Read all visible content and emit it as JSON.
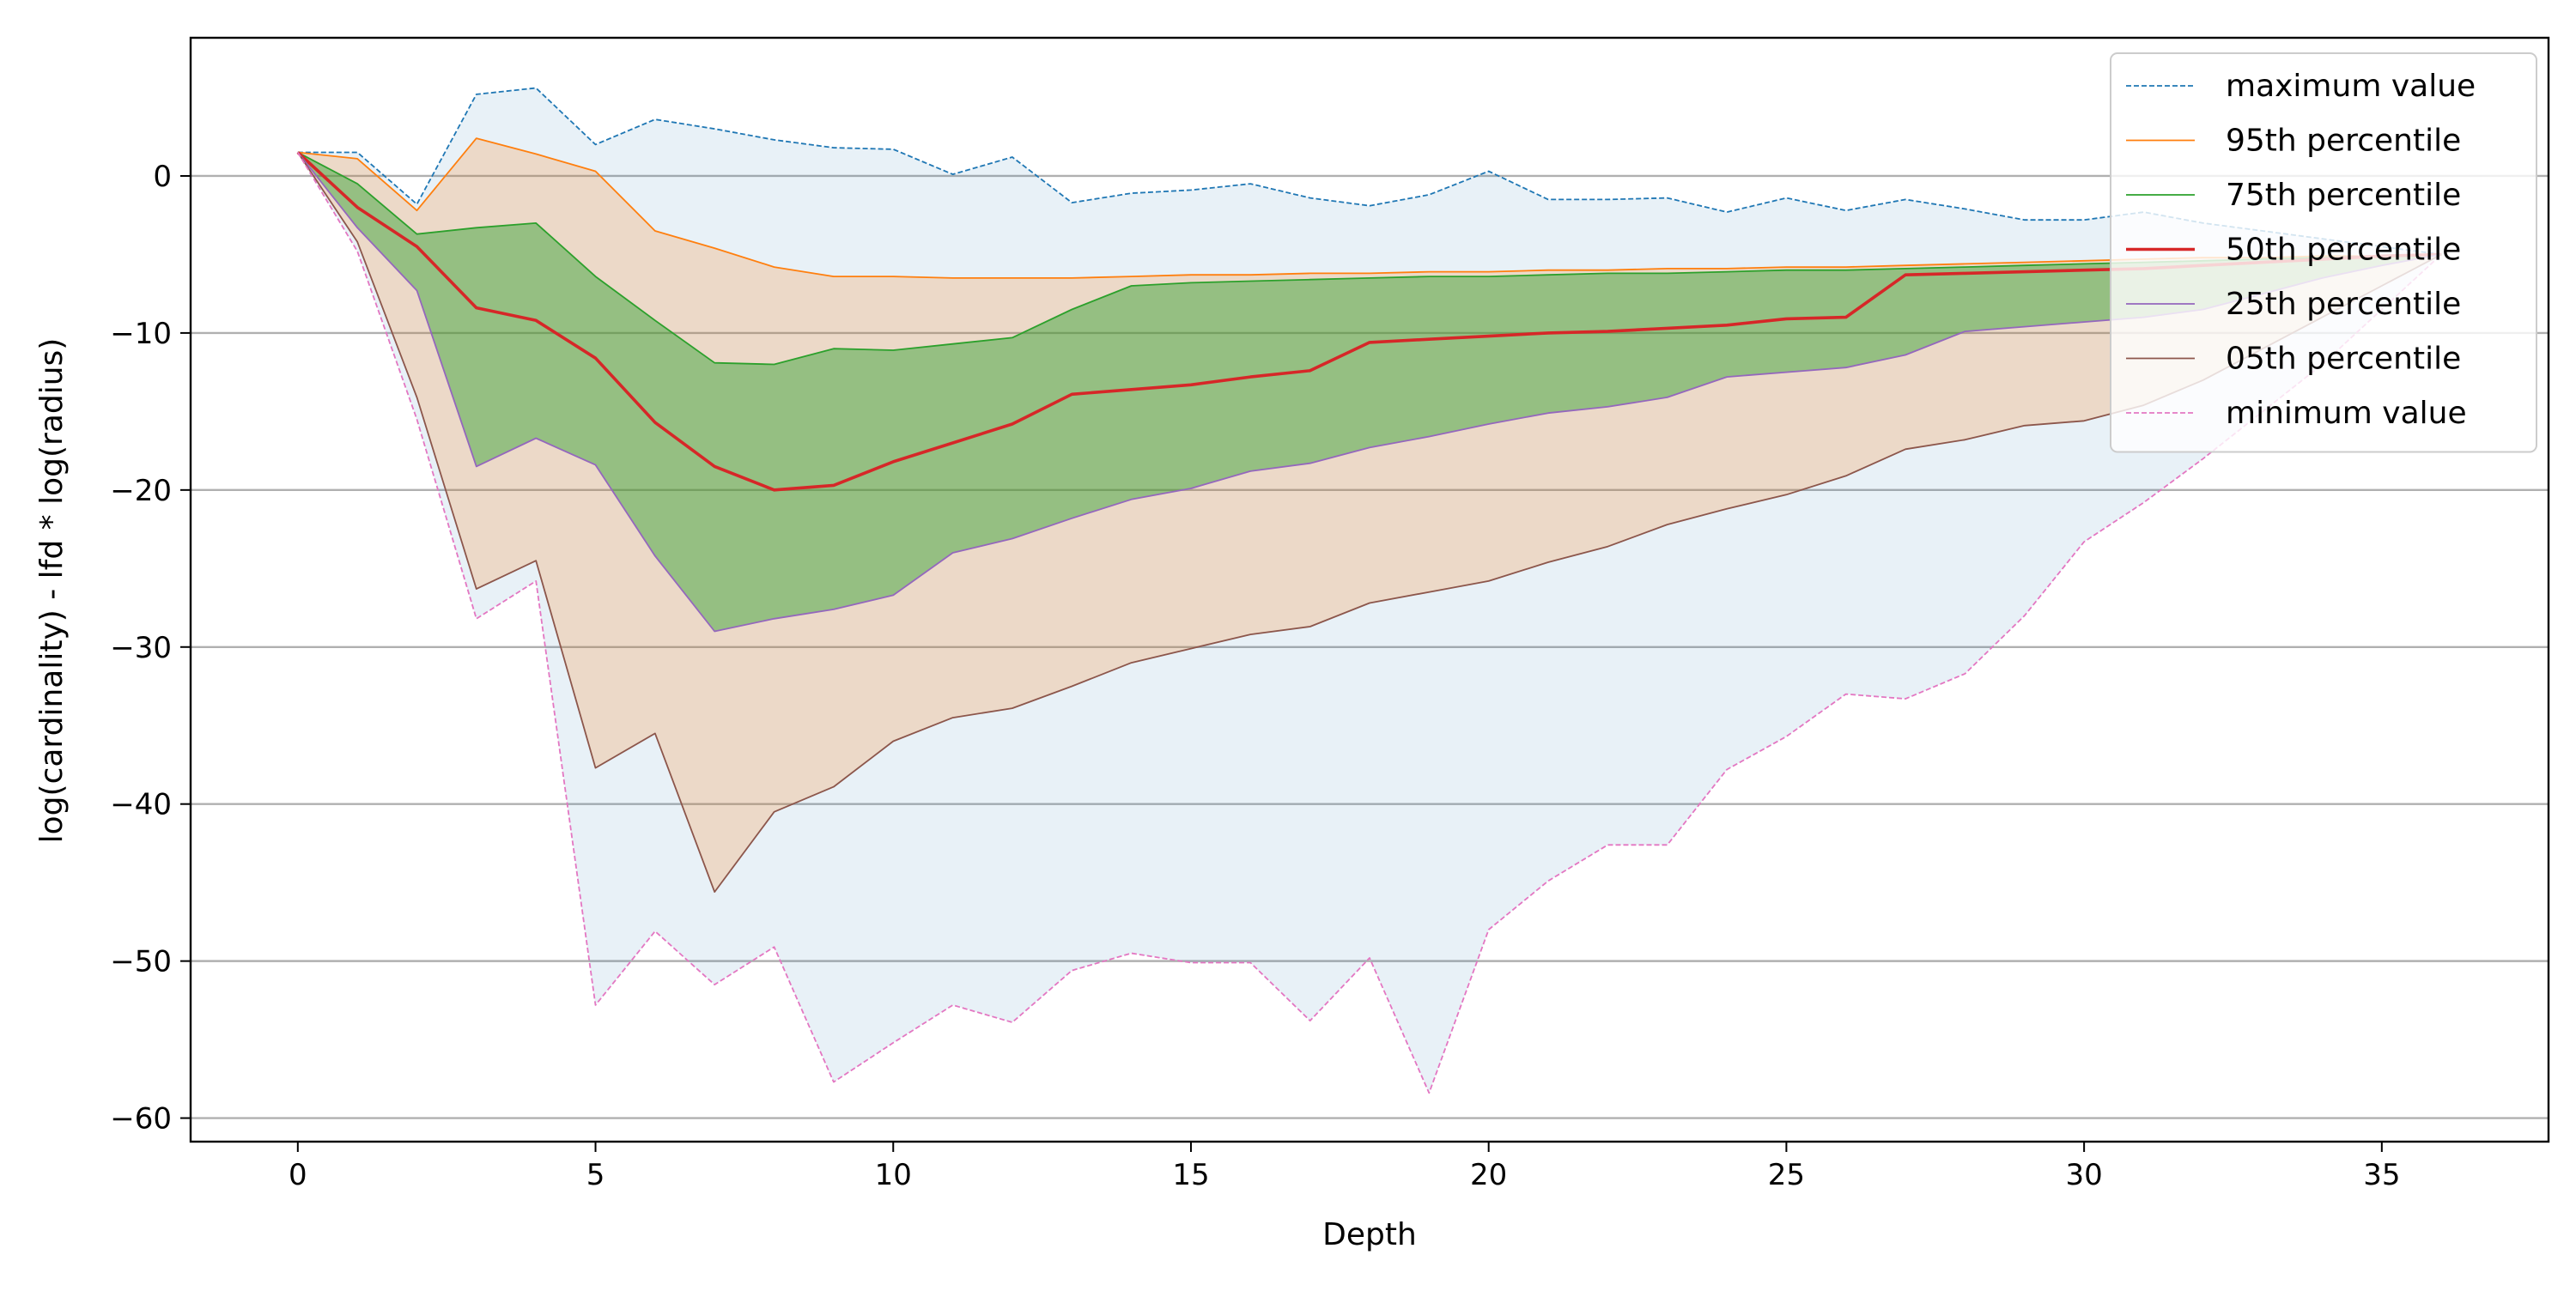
{
  "chart_data": {
    "type": "area",
    "title": "",
    "xlabel": "Depth",
    "ylabel": "log(cardinality) - lfd * log(radius)",
    "xlim": [
      -1.8,
      37.8
    ],
    "ylim": [
      -61.5,
      8.8
    ],
    "xticks": [
      0,
      5,
      10,
      15,
      20,
      25,
      30,
      35
    ],
    "yticks": [
      0,
      -10,
      -20,
      -30,
      -40,
      -50,
      -60
    ],
    "ytick_labels": [
      "0",
      "−10",
      "−20",
      "−30",
      "−40",
      "−50",
      "−60"
    ],
    "grid": "horizontal",
    "legend_position": "upper right",
    "bands": [
      {
        "lower": "minimum value",
        "upper": "maximum value",
        "color": "#1f77b4",
        "opacity": 0.1
      },
      {
        "lower": "05th percentile",
        "upper": "95th percentile",
        "color": "#ff7f0e",
        "opacity": 0.2
      },
      {
        "lower": "25th percentile",
        "upper": "75th percentile",
        "color": "#2ca02c",
        "opacity": 0.45
      }
    ],
    "x": [
      0,
      1,
      2,
      3,
      4,
      5,
      6,
      7,
      8,
      9,
      10,
      11,
      12,
      13,
      14,
      15,
      16,
      17,
      18,
      19,
      20,
      21,
      22,
      23,
      24,
      25,
      26,
      27,
      28,
      29,
      30,
      31,
      32,
      33,
      34,
      35,
      36
    ],
    "series": [
      {
        "name": "maximum value",
        "color": "#1f77b4",
        "dashed": true,
        "values": [
          1.5,
          1.5,
          -1.8,
          5.2,
          5.6,
          2.0,
          3.6,
          3.0,
          2.3,
          1.8,
          1.7,
          0.1,
          1.2,
          -1.7,
          -1.1,
          -0.9,
          -0.5,
          -1.4,
          -1.9,
          -1.2,
          0.3,
          -1.5,
          -1.5,
          -1.4,
          -2.3,
          -1.4,
          -2.2,
          -1.5,
          -2.1,
          -2.8,
          -2.8,
          -2.3,
          -3.0,
          -3.5,
          -4.0,
          -4.5,
          -5.0
        ]
      },
      {
        "name": "95th percentile",
        "color": "#ff7f0e",
        "dashed": false,
        "values": [
          1.5,
          1.1,
          -2.2,
          2.4,
          1.4,
          0.3,
          -3.5,
          -4.6,
          -5.8,
          -6.4,
          -6.4,
          -6.5,
          -6.5,
          -6.5,
          -6.4,
          -6.3,
          -6.3,
          -6.2,
          -6.2,
          -6.1,
          -6.1,
          -6.0,
          -6.0,
          -5.9,
          -5.9,
          -5.8,
          -5.8,
          -5.7,
          -5.6,
          -5.5,
          -5.4,
          -5.3,
          -5.2,
          -5.2,
          -5.1,
          -5.1,
          -5.0
        ]
      },
      {
        "name": "75th percentile",
        "color": "#2ca02c",
        "dashed": false,
        "values": [
          1.5,
          -0.5,
          -3.7,
          -3.3,
          -3.0,
          -6.4,
          -9.2,
          -11.9,
          -12.0,
          -11.0,
          -11.1,
          -10.7,
          -10.3,
          -8.5,
          -7.0,
          -6.8,
          -6.7,
          -6.6,
          -6.5,
          -6.4,
          -6.4,
          -6.3,
          -6.2,
          -6.2,
          -6.1,
          -6.0,
          -6.0,
          -5.9,
          -5.8,
          -5.7,
          -5.6,
          -5.5,
          -5.4,
          -5.3,
          -5.2,
          -5.1,
          -5.0
        ]
      },
      {
        "name": "50th percentile",
        "color": "#d62728",
        "dashed": false,
        "values": [
          1.5,
          -2.0,
          -4.5,
          -8.4,
          -9.2,
          -11.6,
          -15.7,
          -18.5,
          -20.0,
          -19.7,
          -18.2,
          -17.0,
          -15.8,
          -13.9,
          -13.6,
          -13.3,
          -12.8,
          -12.4,
          -10.6,
          -10.4,
          -10.2,
          -10.0,
          -9.9,
          -9.7,
          -9.5,
          -9.1,
          -9.0,
          -6.3,
          -6.2,
          -6.1,
          -6.0,
          -5.9,
          -5.7,
          -5.5,
          -5.3,
          -5.1,
          -5.0
        ]
      },
      {
        "name": "25th percentile",
        "color": "#9467bd",
        "dashed": false,
        "values": [
          1.5,
          -3.3,
          -7.3,
          -18.5,
          -16.7,
          -18.4,
          -24.2,
          -29.0,
          -28.2,
          -27.6,
          -26.7,
          -24.0,
          -23.1,
          -21.8,
          -20.6,
          -19.9,
          -18.8,
          -18.3,
          -17.3,
          -16.6,
          -15.8,
          -15.1,
          -14.7,
          -14.1,
          -12.8,
          -12.5,
          -12.2,
          -11.4,
          -9.9,
          -9.6,
          -9.3,
          -9.0,
          -8.5,
          -7.5,
          -6.5,
          -5.7,
          -5.0
        ]
      },
      {
        "name": "05th percentile",
        "color": "#8c564b",
        "dashed": false,
        "values": [
          1.5,
          -4.2,
          -14.1,
          -26.3,
          -24.5,
          -37.7,
          -35.5,
          -45.6,
          -40.5,
          -38.9,
          -36.0,
          -34.5,
          -33.9,
          -32.5,
          -31.0,
          -30.1,
          -29.2,
          -28.7,
          -27.2,
          -26.5,
          -25.8,
          -24.6,
          -23.6,
          -22.2,
          -21.2,
          -20.3,
          -19.1,
          -17.4,
          -16.8,
          -15.9,
          -15.6,
          -14.6,
          -13.0,
          -11.0,
          -9.0,
          -7.0,
          -5.0
        ]
      },
      {
        "name": "minimum value",
        "color": "#e377c2",
        "dashed": true,
        "values": [
          1.5,
          -4.8,
          -15.5,
          -28.2,
          -25.8,
          -52.8,
          -48.1,
          -51.5,
          -49.1,
          -57.7,
          -55.2,
          -52.8,
          -53.9,
          -50.6,
          -49.5,
          -50.1,
          -50.1,
          -53.8,
          -49.8,
          -58.4,
          -48.0,
          -44.9,
          -42.6,
          -42.6,
          -37.8,
          -35.7,
          -33.0,
          -33.3,
          -31.7,
          -28.0,
          -23.3,
          -20.8,
          -18.0,
          -15.0,
          -12.0,
          -8.5,
          -5.0
        ]
      }
    ]
  }
}
